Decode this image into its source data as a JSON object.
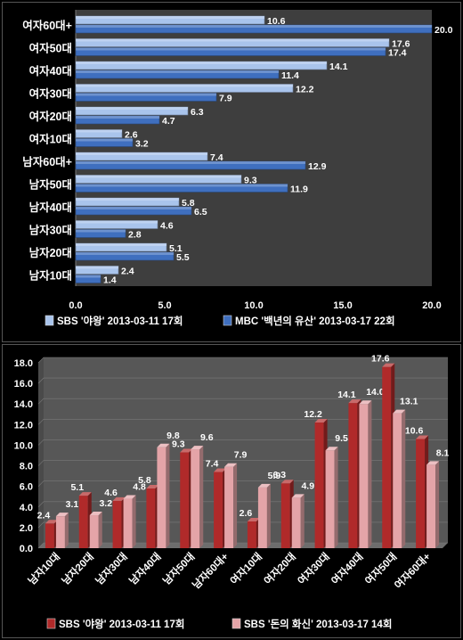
{
  "chart_data": [
    {
      "type": "bar",
      "orientation": "horizontal",
      "categories": [
        "여자60대+",
        "여자50대",
        "여자40대",
        "여자30대",
        "여자20대",
        "여자10대",
        "남자60대+",
        "남자50대",
        "남자40대",
        "남자30대",
        "남자20대",
        "남자10대"
      ],
      "series": [
        {
          "name": "SBS '야왕' 2013-03-11 17회",
          "values": [
            10.6,
            17.6,
            14.1,
            12.2,
            6.3,
            2.6,
            7.4,
            9.3,
            5.8,
            4.6,
            5.1,
            2.4
          ],
          "color": "#a9c4ec"
        },
        {
          "name": "MBC '백년의 유산' 2013-03-17 22회",
          "values": [
            20.0,
            17.4,
            11.4,
            7.9,
            4.7,
            3.2,
            12.9,
            11.9,
            6.5,
            2.8,
            5.5,
            1.4
          ],
          "color": "#3f6fbf"
        }
      ],
      "xlim": [
        0,
        20
      ],
      "ticks": [
        "0.0",
        "5.0",
        "10.0",
        "15.0",
        "20.0"
      ],
      "legend": "bottom",
      "grid": false
    },
    {
      "type": "bar",
      "orientation": "vertical",
      "categories": [
        "남자10대",
        "남자20대",
        "남자30대",
        "남자40대",
        "남자50대",
        "남자60대+",
        "여자10대",
        "여자20대",
        "여자30대",
        "여자40대",
        "여자50대",
        "여자60대+"
      ],
      "series": [
        {
          "name": "SBS '야왕' 2013-03-11 17회",
          "values": [
            2.4,
            5.1,
            4.6,
            5.8,
            9.3,
            7.4,
            2.6,
            6.3,
            12.2,
            14.1,
            17.6,
            10.6
          ],
          "color": "#b02a2a"
        },
        {
          "name": "SBS '돈의 화신' 2013-03-17 14회",
          "values": [
            3.1,
            3.2,
            4.8,
            9.8,
            9.6,
            7.9,
            5.9,
            4.9,
            9.5,
            14.0,
            13.1,
            8.1
          ],
          "color": "#e4a4a8"
        }
      ],
      "ylim": [
        0,
        18
      ],
      "ticks": [
        "0.0",
        "2.0",
        "4.0",
        "6.0",
        "8.0",
        "10.0",
        "12.0",
        "14.0",
        "16.0",
        "18.0"
      ],
      "legend": "bottom",
      "grid": true
    }
  ]
}
